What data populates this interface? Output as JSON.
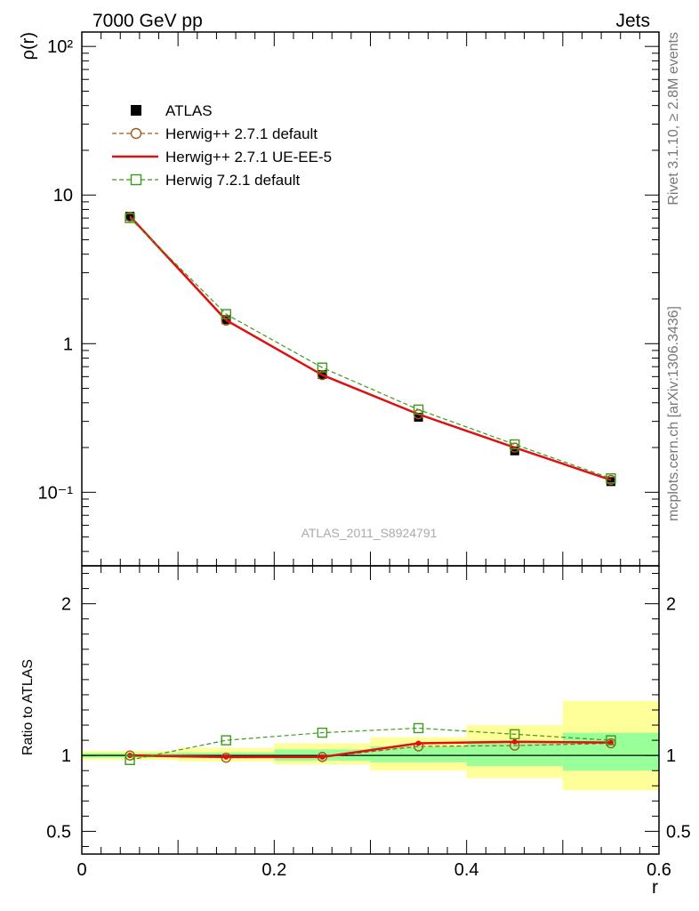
{
  "header": {
    "left": "7000 GeV pp",
    "right": "Jets"
  },
  "side_text": {
    "upper": "Rivet 3.1.10, ≥ 2.8M events",
    "lower": "mcplots.cern.ch [arXiv:1306.3436]"
  },
  "watermark": "ATLAS_2011_S8924791",
  "legend": {
    "items": [
      {
        "label": "ATLAS",
        "marker": "filled-square",
        "color": "#000000"
      },
      {
        "label": "Herwig++ 2.7.1 default",
        "marker": "open-circle",
        "color": "#a05a1c",
        "dash": true
      },
      {
        "label": "Herwig++ 2.7.1 UE-EE-5",
        "marker": "none",
        "color": "#e01010",
        "dash": false
      },
      {
        "label": "Herwig 7.2.1 default",
        "marker": "open-square",
        "color": "#3a9a1a",
        "dash": true
      }
    ]
  },
  "chart_data": [
    {
      "type": "line",
      "panel": "main",
      "ylabel": "ρ(r)",
      "xlabel": "",
      "yscale": "log",
      "ylim": [
        0.032,
        125
      ],
      "xlim": [
        0,
        0.6
      ],
      "ytick_labels": [
        "10⁻¹",
        "1",
        "10",
        "10²"
      ],
      "x": [
        0.05,
        0.15,
        0.25,
        0.35,
        0.45,
        0.55
      ],
      "series": [
        {
          "name": "ATLAS",
          "values": [
            7.2,
            1.45,
            0.62,
            0.32,
            0.19,
            0.118
          ]
        },
        {
          "name": "Herwig++ 2.7.1 default",
          "values": [
            7.15,
            1.43,
            0.615,
            0.335,
            0.2,
            0.121
          ]
        },
        {
          "name": "Herwig++ 2.7.1 UE-EE-5",
          "values": [
            7.2,
            1.44,
            0.615,
            0.335,
            0.2,
            0.121
          ]
        },
        {
          "name": "Herwig 7.2.1 default",
          "values": [
            7.0,
            1.58,
            0.69,
            0.36,
            0.21,
            0.124
          ]
        }
      ]
    },
    {
      "type": "line",
      "panel": "ratio",
      "ylabel": "Ratio to ATLAS",
      "xlabel": "r",
      "ylim": [
        0.35,
        2.25
      ],
      "xlim": [
        0,
        0.6
      ],
      "xtick_labels": [
        "0",
        "0.2",
        "0.4",
        "0.6"
      ],
      "ytick_labels": [
        "0.5",
        "1",
        "2"
      ],
      "x": [
        0.05,
        0.15,
        0.25,
        0.35,
        0.45,
        0.55
      ],
      "bin_edges": [
        0.0,
        0.1,
        0.2,
        0.3,
        0.4,
        0.5,
        0.6
      ],
      "band_stat": [
        [
          0.985,
          1.015
        ],
        [
          0.98,
          1.02
        ],
        [
          0.965,
          1.04
        ],
        [
          0.955,
          1.06
        ],
        [
          0.93,
          1.09
        ],
        [
          0.9,
          1.15
        ]
      ],
      "band_total": [
        [
          0.97,
          1.03
        ],
        [
          0.96,
          1.05
        ],
        [
          0.94,
          1.08
        ],
        [
          0.9,
          1.12
        ],
        [
          0.85,
          1.2
        ],
        [
          0.77,
          1.36
        ]
      ],
      "series": [
        {
          "name": "Herwig++ 2.7.1 default",
          "values": [
            1.0,
            0.985,
            0.99,
            1.06,
            1.065,
            1.08
          ]
        },
        {
          "name": "Herwig++ 2.7.1 UE-EE-5",
          "values": [
            1.0,
            0.99,
            0.99,
            1.08,
            1.09,
            1.085
          ]
        },
        {
          "name": "Herwig 7.2.1 default",
          "values": [
            0.97,
            1.1,
            1.15,
            1.18,
            1.14,
            1.1
          ]
        }
      ]
    }
  ]
}
